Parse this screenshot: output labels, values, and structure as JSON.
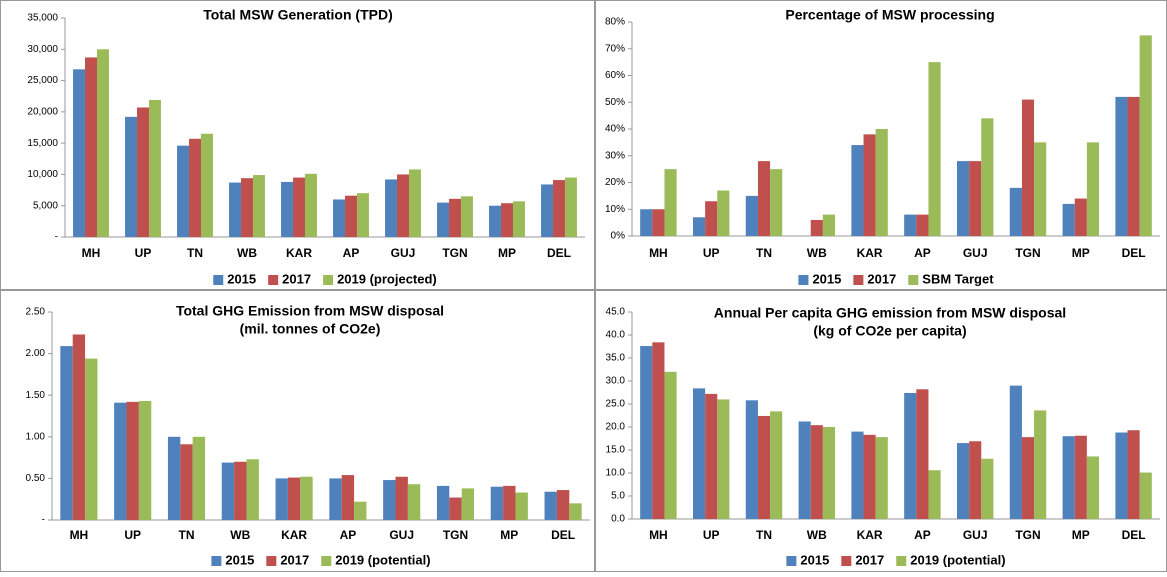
{
  "chart_data": [
    {
      "type": "bar",
      "title": "Total MSW Generation (TPD)",
      "categories": [
        "MH",
        "UP",
        "TN",
        "WB",
        "KAR",
        "AP",
        "GUJ",
        "TGN",
        "MP",
        "DEL"
      ],
      "series": [
        {
          "name": "2015",
          "color": "#4f81bd",
          "values": [
            26800,
            19200,
            14600,
            8700,
            8800,
            6000,
            9200,
            5500,
            5000,
            8400
          ]
        },
        {
          "name": "2017",
          "color": "#c0504d",
          "values": [
            28700,
            20700,
            15700,
            9400,
            9500,
            6600,
            10000,
            6100,
            5400,
            9100
          ]
        },
        {
          "name": "2019 (projected)",
          "color": "#9bbb59",
          "values": [
            30000,
            21900,
            16500,
            9900,
            10100,
            7000,
            10800,
            6500,
            5700,
            9500
          ]
        }
      ],
      "ylim": [
        0,
        35000
      ],
      "yticks": [
        {
          "value": 0,
          "label": "-"
        },
        {
          "value": 5000,
          "label": "5,000"
        },
        {
          "value": 10000,
          "label": "10,000"
        },
        {
          "value": 15000,
          "label": "15,000"
        },
        {
          "value": 20000,
          "label": "20,000"
        },
        {
          "value": 25000,
          "label": "25,000"
        },
        {
          "value": 30000,
          "label": "30,000"
        },
        {
          "value": 35000,
          "label": "35,000"
        }
      ],
      "grid": false,
      "legend": "bottom"
    },
    {
      "type": "bar",
      "title": "Percentage of MSW processing",
      "categories": [
        "MH",
        "UP",
        "TN",
        "WB",
        "KAR",
        "AP",
        "GUJ",
        "TGN",
        "MP",
        "DEL"
      ],
      "series": [
        {
          "name": "2015",
          "color": "#4f81bd",
          "values": [
            10,
            7,
            15,
            0,
            34,
            8,
            28,
            18,
            12,
            52
          ]
        },
        {
          "name": "2017",
          "color": "#c0504d",
          "values": [
            10,
            13,
            28,
            6,
            38,
            8,
            28,
            51,
            14,
            52
          ]
        },
        {
          "name": "SBM Target",
          "color": "#9bbb59",
          "values": [
            25,
            17,
            25,
            8,
            40,
            65,
            44,
            35,
            35,
            75
          ]
        }
      ],
      "ylim": [
        0,
        80
      ],
      "yticks": [
        {
          "value": 0,
          "label": "0%"
        },
        {
          "value": 10,
          "label": "10%"
        },
        {
          "value": 20,
          "label": "20%"
        },
        {
          "value": 30,
          "label": "30%"
        },
        {
          "value": 40,
          "label": "40%"
        },
        {
          "value": 50,
          "label": "50%"
        },
        {
          "value": 60,
          "label": "60%"
        },
        {
          "value": 70,
          "label": "70%"
        },
        {
          "value": 80,
          "label": "80%"
        }
      ],
      "grid": false,
      "legend": "bottom"
    },
    {
      "type": "bar",
      "title": "Total GHG Emission from MSW disposal",
      "subtitle": "(mil. tonnes of CO2e)",
      "categories": [
        "MH",
        "UP",
        "TN",
        "WB",
        "KAR",
        "AP",
        "GUJ",
        "TGN",
        "MP",
        "DEL"
      ],
      "series": [
        {
          "name": "2015",
          "color": "#4f81bd",
          "values": [
            2.09,
            1.41,
            1.0,
            0.69,
            0.5,
            0.5,
            0.48,
            0.41,
            0.4,
            0.34
          ]
        },
        {
          "name": "2017",
          "color": "#c0504d",
          "values": [
            2.23,
            1.42,
            0.91,
            0.7,
            0.51,
            0.54,
            0.52,
            0.27,
            0.41,
            0.36
          ]
        },
        {
          "name": "2019 (potential)",
          "color": "#9bbb59",
          "values": [
            1.94,
            1.43,
            1.0,
            0.73,
            0.52,
            0.22,
            0.43,
            0.38,
            0.33,
            0.2
          ]
        }
      ],
      "ylim": [
        0,
        2.5
      ],
      "yticks": [
        {
          "value": 0,
          "label": "-"
        },
        {
          "value": 0.5,
          "label": "0.50"
        },
        {
          "value": 1,
          "label": "1.00"
        },
        {
          "value": 1.5,
          "label": "1.50"
        },
        {
          "value": 2,
          "label": "2.00"
        },
        {
          "value": 2.5,
          "label": "2.50"
        }
      ],
      "grid": false,
      "legend": "bottom"
    },
    {
      "type": "bar",
      "title": "Annual Per capita GHG emission from MSW disposal",
      "subtitle": "(kg of CO2e per capita)",
      "categories": [
        "MH",
        "UP",
        "TN",
        "WB",
        "KAR",
        "AP",
        "GUJ",
        "TGN",
        "MP",
        "DEL"
      ],
      "series": [
        {
          "name": "2015",
          "color": "#4f81bd",
          "values": [
            37.6,
            28.4,
            25.8,
            21.2,
            19.0,
            27.4,
            16.5,
            29.0,
            18.0,
            18.8
          ]
        },
        {
          "name": "2017",
          "color": "#c0504d",
          "values": [
            38.4,
            27.2,
            22.4,
            20.4,
            18.3,
            28.2,
            16.9,
            17.8,
            18.1,
            19.3
          ]
        },
        {
          "name": "2019 (potential)",
          "color": "#9bbb59",
          "values": [
            32.0,
            26.0,
            23.4,
            20.0,
            17.8,
            10.6,
            13.1,
            23.6,
            13.6,
            10.1
          ]
        }
      ],
      "ylim": [
        0,
        45
      ],
      "yticks": [
        {
          "value": 0,
          "label": "0.0"
        },
        {
          "value": 5,
          "label": "5.0"
        },
        {
          "value": 10,
          "label": "10.0"
        },
        {
          "value": 15,
          "label": "15.0"
        },
        {
          "value": 20,
          "label": "20.0"
        },
        {
          "value": 25,
          "label": "25.0"
        },
        {
          "value": 30,
          "label": "30.0"
        },
        {
          "value": 35,
          "label": "35.0"
        },
        {
          "value": 40,
          "label": "40.0"
        },
        {
          "value": 45,
          "label": "45.0"
        }
      ],
      "grid": false,
      "legend": "bottom"
    }
  ]
}
